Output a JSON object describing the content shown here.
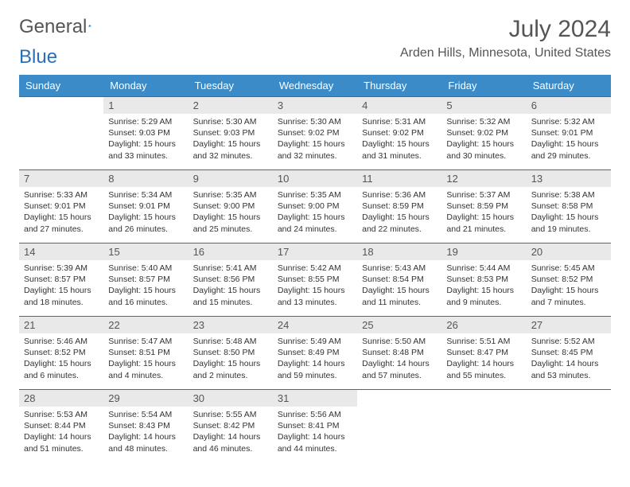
{
  "logo": {
    "part1": "General",
    "part2": "Blue"
  },
  "title": "July 2024",
  "location": "Arden Hills, Minnesota, United States",
  "weekdays": [
    "Sunday",
    "Monday",
    "Tuesday",
    "Wednesday",
    "Thursday",
    "Friday",
    "Saturday"
  ],
  "colors": {
    "header_bg": "#3b8bc9",
    "row_border": "#2a6fb5",
    "daynum_bg": "#e9e9e9",
    "text": "#333333",
    "title_text": "#555555"
  },
  "typography": {
    "month_title_pt": 30,
    "location_pt": 16,
    "weekday_pt": 13,
    "daynum_pt": 13,
    "body_pt": 10.5
  },
  "layout": {
    "columns": 7,
    "rows": 5,
    "first_weekday_index": 1
  },
  "days": [
    null,
    {
      "n": "1",
      "sunrise": "5:29 AM",
      "sunset": "9:03 PM",
      "daylight": "15 hours and 33 minutes."
    },
    {
      "n": "2",
      "sunrise": "5:30 AM",
      "sunset": "9:03 PM",
      "daylight": "15 hours and 32 minutes."
    },
    {
      "n": "3",
      "sunrise": "5:30 AM",
      "sunset": "9:02 PM",
      "daylight": "15 hours and 32 minutes."
    },
    {
      "n": "4",
      "sunrise": "5:31 AM",
      "sunset": "9:02 PM",
      "daylight": "15 hours and 31 minutes."
    },
    {
      "n": "5",
      "sunrise": "5:32 AM",
      "sunset": "9:02 PM",
      "daylight": "15 hours and 30 minutes."
    },
    {
      "n": "6",
      "sunrise": "5:32 AM",
      "sunset": "9:01 PM",
      "daylight": "15 hours and 29 minutes."
    },
    {
      "n": "7",
      "sunrise": "5:33 AM",
      "sunset": "9:01 PM",
      "daylight": "15 hours and 27 minutes."
    },
    {
      "n": "8",
      "sunrise": "5:34 AM",
      "sunset": "9:01 PM",
      "daylight": "15 hours and 26 minutes."
    },
    {
      "n": "9",
      "sunrise": "5:35 AM",
      "sunset": "9:00 PM",
      "daylight": "15 hours and 25 minutes."
    },
    {
      "n": "10",
      "sunrise": "5:35 AM",
      "sunset": "9:00 PM",
      "daylight": "15 hours and 24 minutes."
    },
    {
      "n": "11",
      "sunrise": "5:36 AM",
      "sunset": "8:59 PM",
      "daylight": "15 hours and 22 minutes."
    },
    {
      "n": "12",
      "sunrise": "5:37 AM",
      "sunset": "8:59 PM",
      "daylight": "15 hours and 21 minutes."
    },
    {
      "n": "13",
      "sunrise": "5:38 AM",
      "sunset": "8:58 PM",
      "daylight": "15 hours and 19 minutes."
    },
    {
      "n": "14",
      "sunrise": "5:39 AM",
      "sunset": "8:57 PM",
      "daylight": "15 hours and 18 minutes."
    },
    {
      "n": "15",
      "sunrise": "5:40 AM",
      "sunset": "8:57 PM",
      "daylight": "15 hours and 16 minutes."
    },
    {
      "n": "16",
      "sunrise": "5:41 AM",
      "sunset": "8:56 PM",
      "daylight": "15 hours and 15 minutes."
    },
    {
      "n": "17",
      "sunrise": "5:42 AM",
      "sunset": "8:55 PM",
      "daylight": "15 hours and 13 minutes."
    },
    {
      "n": "18",
      "sunrise": "5:43 AM",
      "sunset": "8:54 PM",
      "daylight": "15 hours and 11 minutes."
    },
    {
      "n": "19",
      "sunrise": "5:44 AM",
      "sunset": "8:53 PM",
      "daylight": "15 hours and 9 minutes."
    },
    {
      "n": "20",
      "sunrise": "5:45 AM",
      "sunset": "8:52 PM",
      "daylight": "15 hours and 7 minutes."
    },
    {
      "n": "21",
      "sunrise": "5:46 AM",
      "sunset": "8:52 PM",
      "daylight": "15 hours and 6 minutes."
    },
    {
      "n": "22",
      "sunrise": "5:47 AM",
      "sunset": "8:51 PM",
      "daylight": "15 hours and 4 minutes."
    },
    {
      "n": "23",
      "sunrise": "5:48 AM",
      "sunset": "8:50 PM",
      "daylight": "15 hours and 2 minutes."
    },
    {
      "n": "24",
      "sunrise": "5:49 AM",
      "sunset": "8:49 PM",
      "daylight": "14 hours and 59 minutes."
    },
    {
      "n": "25",
      "sunrise": "5:50 AM",
      "sunset": "8:48 PM",
      "daylight": "14 hours and 57 minutes."
    },
    {
      "n": "26",
      "sunrise": "5:51 AM",
      "sunset": "8:47 PM",
      "daylight": "14 hours and 55 minutes."
    },
    {
      "n": "27",
      "sunrise": "5:52 AM",
      "sunset": "8:45 PM",
      "daylight": "14 hours and 53 minutes."
    },
    {
      "n": "28",
      "sunrise": "5:53 AM",
      "sunset": "8:44 PM",
      "daylight": "14 hours and 51 minutes."
    },
    {
      "n": "29",
      "sunrise": "5:54 AM",
      "sunset": "8:43 PM",
      "daylight": "14 hours and 48 minutes."
    },
    {
      "n": "30",
      "sunrise": "5:55 AM",
      "sunset": "8:42 PM",
      "daylight": "14 hours and 46 minutes."
    },
    {
      "n": "31",
      "sunrise": "5:56 AM",
      "sunset": "8:41 PM",
      "daylight": "14 hours and 44 minutes."
    },
    null,
    null,
    null
  ],
  "labels": {
    "sunrise": "Sunrise:",
    "sunset": "Sunset:",
    "daylight": "Daylight:"
  }
}
